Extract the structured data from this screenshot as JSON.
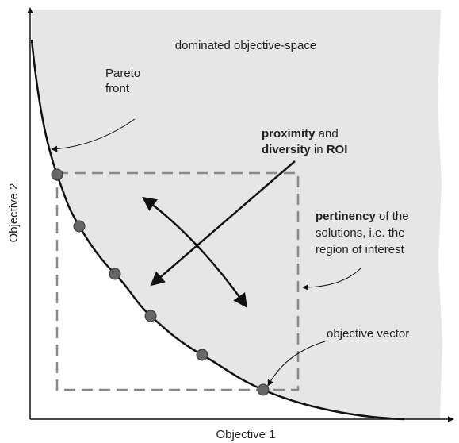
{
  "title": "dominated objective-space",
  "axes": {
    "x_label": "Objective 1",
    "y_label": "Objective 2"
  },
  "annotations": {
    "pareto": [
      "Pareto",
      "front"
    ],
    "roi": [
      "proximity",
      " and",
      "diversity",
      " in ",
      "ROI"
    ],
    "pertinency": [
      "pertinency",
      " of the",
      "solutions, i.e. the",
      "region of interest"
    ],
    "vector": "objective vector"
  }
}
